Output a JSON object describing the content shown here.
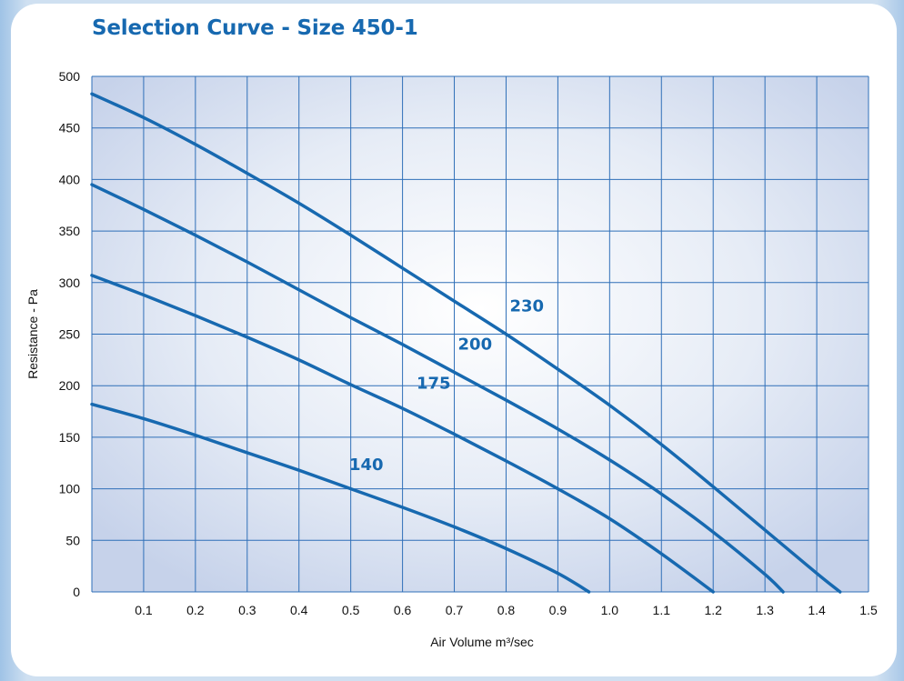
{
  "chart_data": {
    "type": "line",
    "title": "Selection Curve - Size 450-1",
    "xlabel": "Air Volume m³/sec",
    "ylabel": "Resistance - Pa",
    "xlim": [
      0,
      1.5
    ],
    "ylim": [
      0,
      500
    ],
    "x_ticks": [
      "0.1",
      "0.2",
      "0.3",
      "0.4",
      "0.5",
      "0.6",
      "0.7",
      "0.8",
      "0.9",
      "1.0",
      "1.1",
      "1.2",
      "1.3",
      "1.4",
      "1.5"
    ],
    "y_ticks": [
      "0",
      "50",
      "100",
      "150",
      "200",
      "250",
      "300",
      "350",
      "400",
      "450",
      "500"
    ],
    "grid": true,
    "colors": {
      "curve": "#1769b0",
      "grid": "#2f6fb8",
      "title": "#1769b0"
    },
    "series": [
      {
        "name": "140",
        "label_at": [
          0.53,
          118
        ],
        "x": [
          0,
          0.1,
          0.2,
          0.3,
          0.4,
          0.5,
          0.6,
          0.7,
          0.8,
          0.9,
          0.96
        ],
        "y": [
          182,
          168,
          152,
          135,
          118,
          100,
          82,
          63,
          42,
          18,
          0
        ]
      },
      {
        "name": "175",
        "label_at": [
          0.66,
          197
        ],
        "x": [
          0,
          0.1,
          0.2,
          0.3,
          0.4,
          0.5,
          0.6,
          0.7,
          0.8,
          0.9,
          1.0,
          1.1,
          1.2
        ],
        "y": [
          307,
          288,
          268,
          247,
          225,
          201,
          178,
          153,
          127,
          100,
          71,
          37,
          0
        ]
      },
      {
        "name": "200",
        "label_at": [
          0.74,
          235
        ],
        "x": [
          0,
          0.1,
          0.2,
          0.3,
          0.4,
          0.5,
          0.6,
          0.7,
          0.8,
          0.9,
          1.0,
          1.1,
          1.2,
          1.3,
          1.335
        ],
        "y": [
          395,
          371,
          346,
          320,
          293,
          266,
          240,
          213,
          186,
          158,
          128,
          95,
          58,
          17,
          0
        ]
      },
      {
        "name": "230",
        "label_at": [
          0.84,
          272
        ],
        "x": [
          0,
          0.1,
          0.2,
          0.3,
          0.4,
          0.5,
          0.6,
          0.7,
          0.8,
          0.9,
          1.0,
          1.1,
          1.2,
          1.3,
          1.4,
          1.445
        ],
        "y": [
          483,
          460,
          434,
          406,
          377,
          346,
          314,
          282,
          250,
          216,
          181,
          143,
          102,
          60,
          18,
          0
        ]
      }
    ]
  }
}
